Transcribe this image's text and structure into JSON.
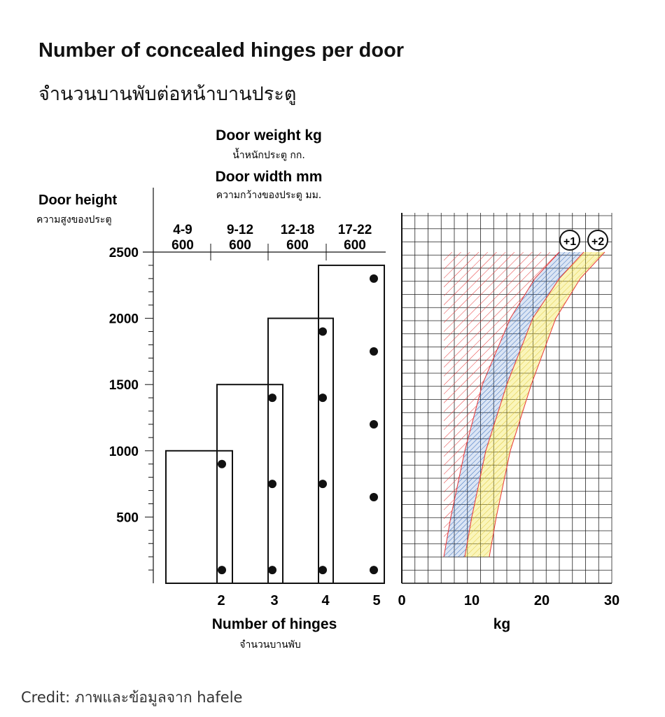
{
  "title": "Number of concealed hinges per door",
  "subtitle": "จำนวนบานพับต่อหน้าบานประตู",
  "credit": "Credit: ภาพและข้อมูลจาก hafele",
  "chart_data": [
    {
      "type": "bar",
      "description_labels": {
        "ylabel": "Door height",
        "ylabel_th": "ความสูงของประตู",
        "top_label_weight": "Door weight kg",
        "top_label_weight_th": "น้ำหนักประตู กก.",
        "top_label_width": "Door width mm",
        "top_label_width_th": "ความกว้างของประตู มม.",
        "xlabel": "Number of hinges",
        "xlabel_th": "จำนวนบานพับ"
      },
      "ylim": [
        0,
        2500
      ],
      "yticks": [
        500,
        1000,
        1500,
        2000,
        2500
      ],
      "ytick_labels": [
        "500",
        "1000",
        "1500",
        "2000",
        "2500"
      ],
      "categories": [
        "2",
        "3",
        "4",
        "5"
      ],
      "columns": [
        {
          "weight": "4-9",
          "width": "600",
          "max_height": 1000,
          "hinge_positions": [
            100,
            900
          ]
        },
        {
          "weight": "9-12",
          "width": "600",
          "max_height": 1500,
          "hinge_positions": [
            100,
            750,
            1400
          ]
        },
        {
          "weight": "12-18",
          "width": "600",
          "max_height": 2000,
          "hinge_positions": [
            100,
            750,
            1400,
            1900
          ]
        },
        {
          "weight": "17-22",
          "width": "600",
          "max_height": 2400,
          "hinge_positions": [
            100,
            650,
            1200,
            1750,
            2300
          ]
        }
      ]
    },
    {
      "type": "area",
      "xlabel": "kg",
      "xlim": [
        0,
        30
      ],
      "xticks": [
        0,
        10,
        20,
        30
      ],
      "xtick_labels": [
        "0",
        "10",
        "20",
        "30"
      ],
      "ylim": [
        0,
        2500
      ],
      "grid": true,
      "band_labels": [
        "+1",
        "+2"
      ],
      "band_colors": {
        "base": "#e8393a",
        "plus1": "#3a6fc0",
        "plus2": "#f2e23a"
      },
      "series": [
        {
          "name": "+1",
          "x": [
            6,
            7,
            9,
            11.5,
            15.5,
            19,
            22.5
          ],
          "y": [
            200,
            500,
            1000,
            1500,
            2000,
            2300,
            2500
          ]
        },
        {
          "name": "+2",
          "x": [
            9,
            10,
            12,
            15,
            18.7,
            22.5,
            26
          ],
          "y": [
            200,
            500,
            1000,
            1500,
            2000,
            2300,
            2500
          ]
        },
        {
          "name": "",
          "x": [
            12.5,
            13.5,
            15.5,
            18.5,
            22,
            25.5,
            29
          ],
          "y": [
            200,
            500,
            1000,
            1500,
            2000,
            2300,
            2500
          ]
        }
      ]
    }
  ]
}
